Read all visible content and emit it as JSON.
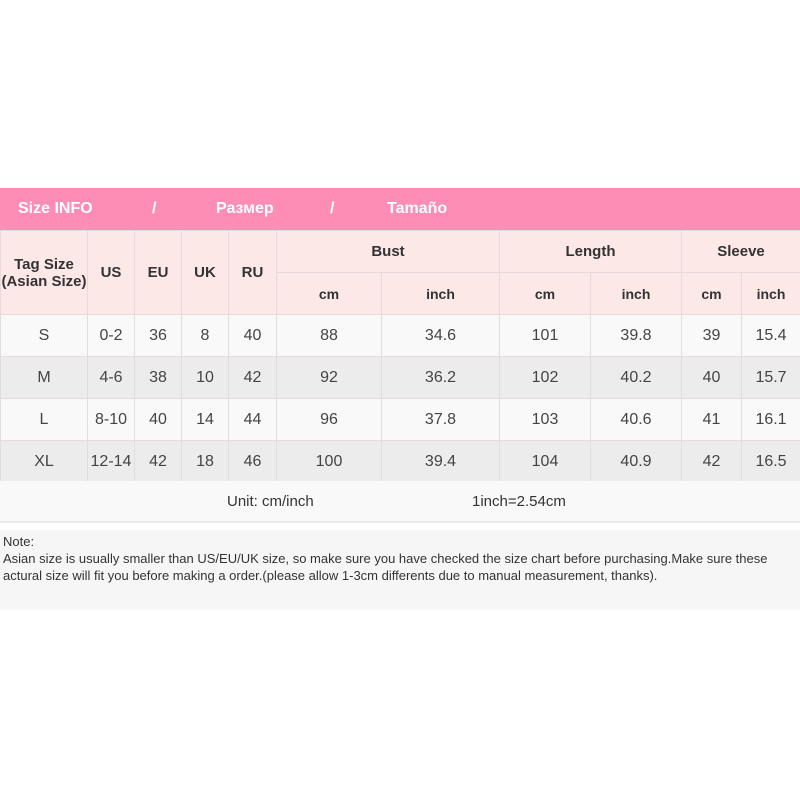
{
  "banner": {
    "title": "Size INFO",
    "sep1": "/",
    "ru": "Размер",
    "sep2": "/",
    "es": "Tamaño",
    "color": "#fe8db6"
  },
  "headers": {
    "tag": "Tag Size (Asian Size)",
    "us": "US",
    "eu": "EU",
    "uk": "UK",
    "ru": "RU",
    "bust": "Bust",
    "length": "Length",
    "sleeve": "Sleeve",
    "cm": "cm",
    "inch": "inch"
  },
  "rows": [
    [
      "S",
      "0-2",
      "36",
      "8",
      "40",
      "88",
      "34.6",
      "101",
      "39.8",
      "39",
      "15.4"
    ],
    [
      "M",
      "4-6",
      "38",
      "10",
      "42",
      "92",
      "36.2",
      "102",
      "40.2",
      "40",
      "15.7"
    ],
    [
      "L",
      "8-10",
      "40",
      "14",
      "44",
      "96",
      "37.8",
      "103",
      "40.6",
      "41",
      "16.1"
    ],
    [
      "XL",
      "12-14",
      "42",
      "18",
      "46",
      "100",
      "39.4",
      "104",
      "40.9",
      "42",
      "16.5"
    ]
  ],
  "unit": {
    "label": "Unit: cm/inch",
    "conversion": "1inch=2.54cm"
  },
  "note": {
    "title": "Note:",
    "text": "Asian size is usually smaller than US/EU/UK size, so make sure you have checked the size chart before purchasing.Make sure these actural size will fit you before making a order.(please allow 1-3cm differents due to manual measurement, thanks)."
  }
}
